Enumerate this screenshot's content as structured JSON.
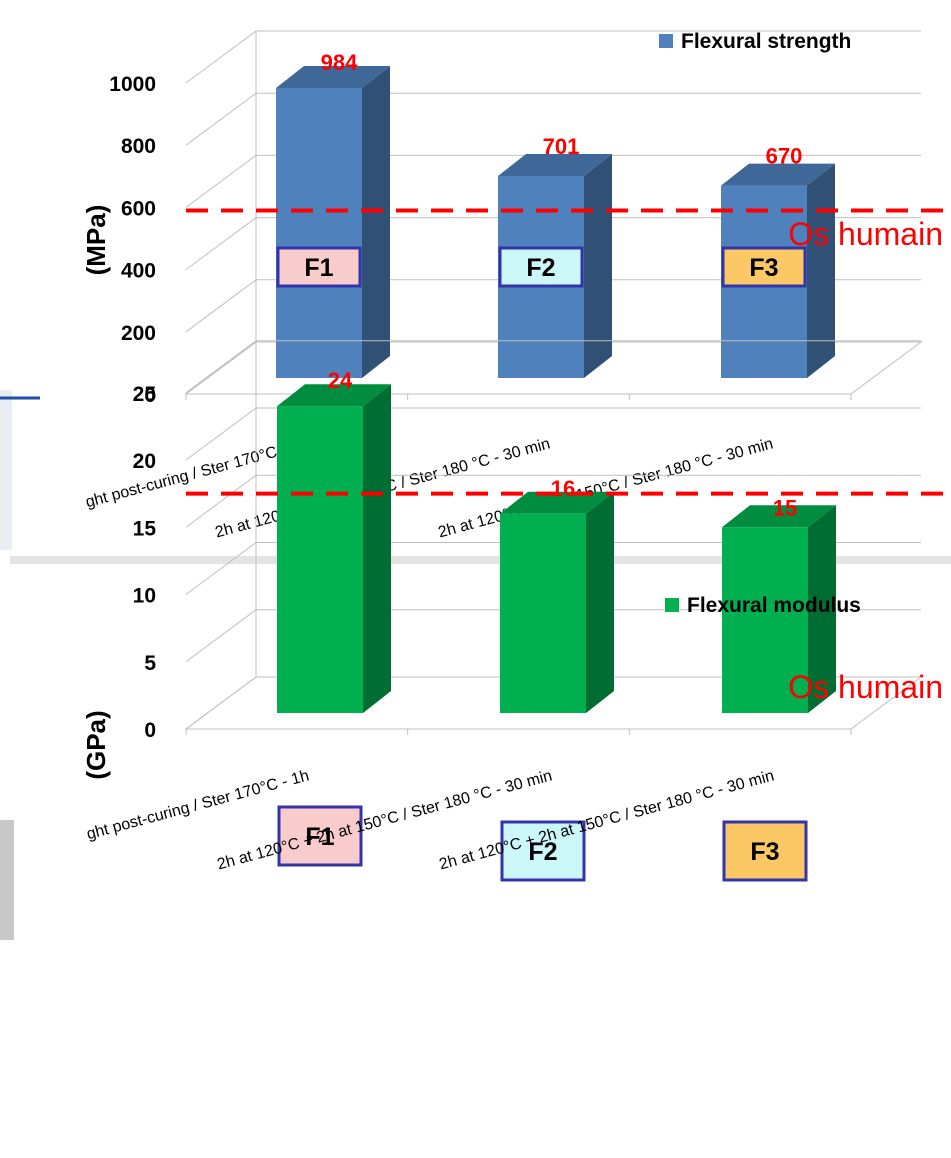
{
  "chart_data": [
    {
      "type": "bar",
      "categories": [
        "ght post-curing / Ster 170°C - 1h",
        "2h at 120°C + 2h at 150°C / Ster 180 °C - 30 min",
        "2h at 120°C + 2h at 150°C / Ster 180 °C - 30 min"
      ],
      "series": [
        {
          "name": "Flexural strength",
          "values": [
            984,
            701,
            670
          ],
          "color": "#4f81bd"
        }
      ],
      "data_labels": [
        "984",
        "701",
        "670"
      ],
      "bar_tags": [
        "F1",
        "F2",
        "F3"
      ],
      "tag_colors": [
        "#f9cccc",
        "#ccf7f9",
        "#fcc765"
      ],
      "ylabel": "(MPa)",
      "ylim": [
        0,
        1000
      ],
      "yticks": [
        "0",
        "200",
        "400",
        "600",
        "800",
        "1000"
      ],
      "reference_line": {
        "value": 590,
        "label": "Os humain",
        "color": "#ff0000"
      },
      "legend_position": "top-right",
      "grid": true
    },
    {
      "type": "bar",
      "categories": [
        "ght post-curing / Ster 170°C - 1h",
        "2h at 120°C + 2h at 150°C / Ster 180 °C - 30 min",
        "2h at 120°C + 2h at 150°C / Ster 180 °C - 30 min"
      ],
      "series": [
        {
          "name": "Flexural modulus",
          "values": [
            24,
            16,
            15
          ],
          "color": "#00b050"
        }
      ],
      "data_labels": [
        "24",
        "16",
        "15"
      ],
      "bar_tags": [
        "F1",
        "F2",
        "F3"
      ],
      "tag_colors": [
        "#f9cccc",
        "#ccf7f9",
        "#fcc765"
      ],
      "ylabel": "(GPa)",
      "ylim": [
        0,
        25
      ],
      "yticks": [
        "0",
        "5",
        "10",
        "15",
        "20",
        "25"
      ],
      "reference_line": {
        "value": 17.5,
        "label": "Os humain",
        "color": "#ff0000"
      },
      "legend_position": "top-right",
      "grid": true
    }
  ]
}
